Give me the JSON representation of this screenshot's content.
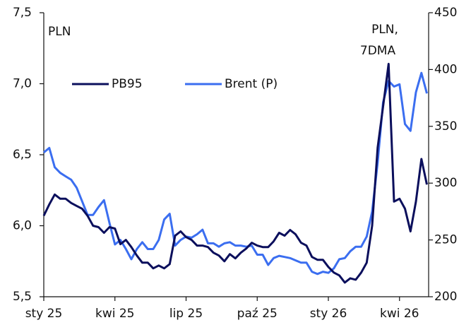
{
  "chart_data": {
    "type": "line",
    "annotations": [
      "PLN",
      "PLN,",
      "7DMA"
    ],
    "categories": [
      "sty 25",
      null,
      null,
      null,
      null,
      null,
      null,
      null,
      null,
      null,
      null,
      null,
      null,
      "kwi 25",
      null,
      null,
      null,
      null,
      null,
      null,
      null,
      null,
      null,
      null,
      null,
      null,
      "lip 25",
      null,
      null,
      null,
      null,
      null,
      null,
      null,
      null,
      null,
      null,
      null,
      null,
      "paź 25",
      null,
      null,
      null,
      null,
      null,
      null,
      null,
      null,
      null,
      null,
      null,
      null,
      "sty 26",
      null,
      null,
      null,
      null,
      null,
      null,
      null,
      null,
      null,
      null,
      null,
      null,
      "kwi 26",
      null,
      null,
      null,
      null,
      null
    ],
    "series": [
      {
        "name": "PB95",
        "color": "#0b0f5c",
        "axis": "y",
        "values": [
          6.07,
          6.15,
          6.22,
          6.19,
          6.19,
          6.16,
          6.14,
          6.12,
          6.07,
          6.0,
          5.99,
          5.95,
          5.99,
          5.98,
          5.87,
          5.9,
          5.85,
          5.79,
          5.74,
          5.74,
          5.7,
          5.72,
          5.7,
          5.73,
          5.93,
          5.96,
          5.92,
          5.9,
          5.86,
          5.86,
          5.85,
          5.81,
          5.79,
          5.75,
          5.8,
          5.77,
          5.81,
          5.84,
          5.88,
          5.86,
          5.85,
          5.85,
          5.89,
          5.95,
          5.93,
          5.97,
          5.94,
          5.88,
          5.86,
          5.78,
          5.76,
          5.76,
          5.71,
          5.67,
          5.65,
          5.6,
          5.63,
          5.62,
          5.67,
          5.74,
          6.0,
          6.55,
          6.84,
          7.14,
          6.17,
          6.19,
          6.12,
          5.96,
          6.17,
          6.47,
          6.29
        ]
      },
      {
        "name": "Brent (P)",
        "color": "#3b6ef0",
        "axis": "y2",
        "values": [
          327,
          331,
          314,
          309,
          306,
          303,
          296,
          284,
          272,
          272,
          279,
          285,
          265,
          246,
          250,
          242,
          233,
          242,
          248,
          242,
          242,
          250,
          268,
          273,
          245,
          250,
          253,
          252,
          255,
          259,
          247,
          247,
          244,
          247,
          248,
          245,
          245,
          244,
          245,
          237,
          237,
          228,
          234,
          236,
          235,
          234,
          232,
          230,
          230,
          222,
          220,
          222,
          221,
          225,
          233,
          234,
          240,
          244,
          244,
          253,
          275,
          318,
          371,
          390,
          385,
          387,
          352,
          346,
          380,
          397,
          379
        ]
      }
    ],
    "ylim": [
      5.5,
      7.5
    ],
    "yticks": [
      {
        "value": 5.5,
        "label": "5,5"
      },
      {
        "value": 6.0,
        "label": "6,0"
      },
      {
        "value": 6.5,
        "label": "6,5"
      },
      {
        "value": 7.0,
        "label": "7,0"
      },
      {
        "value": 7.5,
        "label": "7,5"
      }
    ],
    "y2lim": [
      200,
      450
    ],
    "y2ticks": [
      200,
      250,
      300,
      350,
      400,
      450
    ],
    "grid": false,
    "legend": "upper left"
  }
}
